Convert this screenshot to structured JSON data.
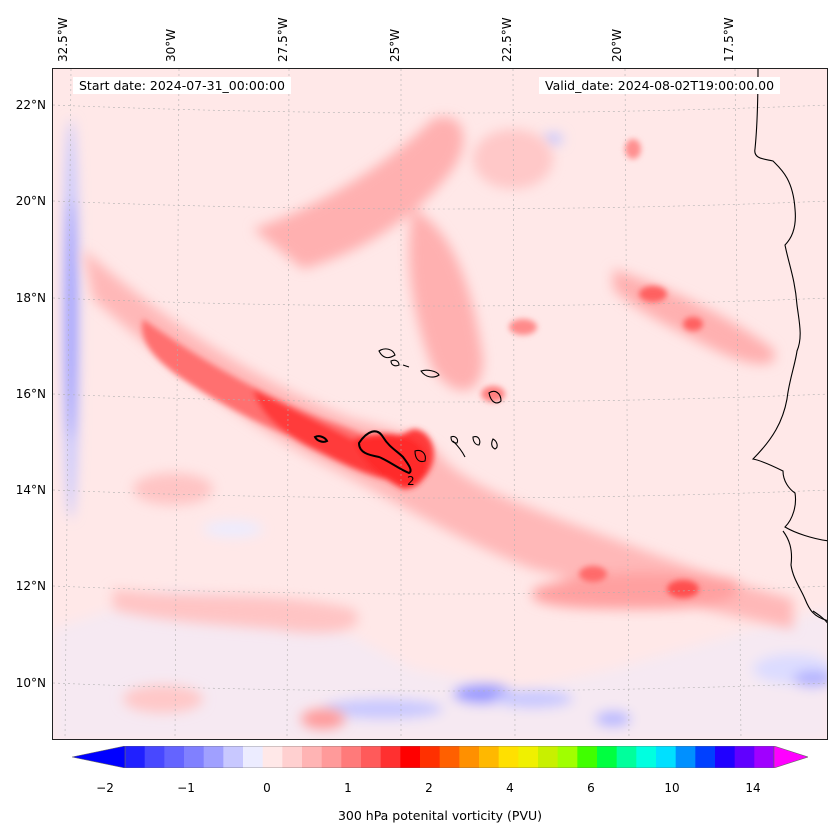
{
  "map": {
    "start_date": "Start date: 2024-07-31_00:00:00",
    "valid_date": "Valid_date: 2024-08-02T19:00:00.00",
    "lon_labels": [
      "32.5°W",
      "30°W",
      "27.5°W",
      "25°W",
      "22.5°W",
      "20°W",
      "17.5°W"
    ],
    "lat_labels": [
      "22°N",
      "20°N",
      "18°N",
      "16°N",
      "14°N",
      "12°N",
      "10°N"
    ],
    "contour_label": "2",
    "colorbar_label": "300 hPa potenital vorticity (PVU)",
    "colorbar_ticks": [
      "−2",
      "−1",
      "0",
      "1",
      "2",
      "4",
      "6",
      "10",
      "14"
    ],
    "colors": {
      "neg_strong": "#0000ff",
      "neg_weak": "#eeeeff",
      "pos_weak": "#ffe6e6",
      "pos_mid": "#ff8080",
      "pos_strong": "#ff2020",
      "coast": "#000000"
    }
  }
}
